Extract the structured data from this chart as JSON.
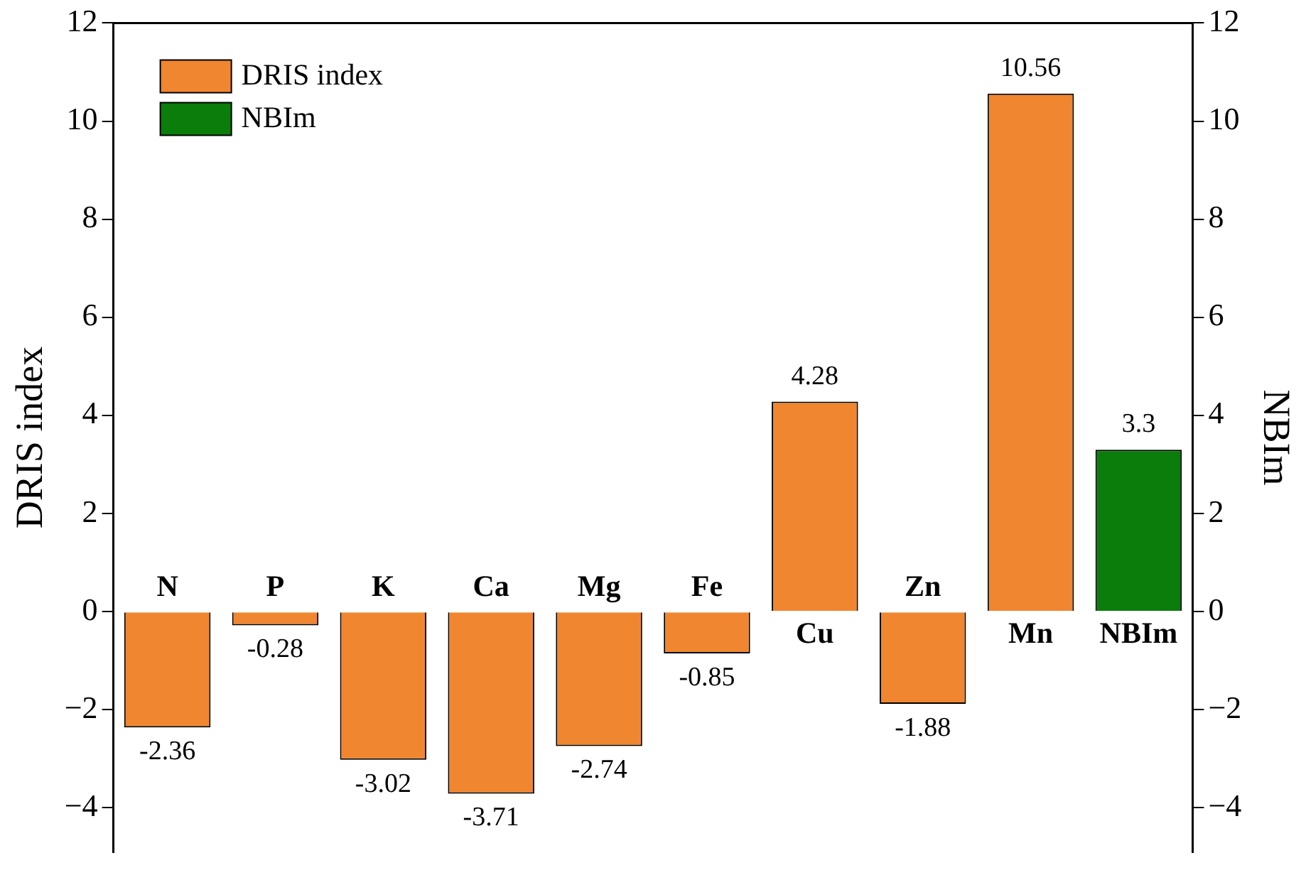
{
  "chart_data": {
    "type": "bar",
    "ylabel": "DRIS index",
    "y2label": "NBIm",
    "categories": [
      "N",
      "P",
      "K",
      "Ca",
      "Mg",
      "Fe",
      "Cu",
      "Zn",
      "Mn",
      "NBIm"
    ],
    "series": [
      {
        "name": "DRIS index",
        "color": "#f0862f",
        "values": [
          -2.36,
          -0.28,
          -3.02,
          -3.71,
          -2.74,
          -0.85,
          4.28,
          -1.88,
          10.56,
          null
        ]
      },
      {
        "name": "NBIm",
        "color": "#0a7d0a",
        "values": [
          null,
          null,
          null,
          null,
          null,
          null,
          null,
          null,
          null,
          3.3
        ]
      }
    ],
    "ylim": [
      -4.9,
      12
    ],
    "yticks": [
      -4,
      -2,
      0,
      2,
      4,
      6,
      8,
      10,
      12
    ],
    "y2lim": [
      -4.9,
      12
    ],
    "y2ticks": [
      -4,
      -2,
      0,
      2,
      4,
      6,
      8,
      10,
      12
    ],
    "data_labels": true,
    "grid": false,
    "legend": "top left"
  }
}
